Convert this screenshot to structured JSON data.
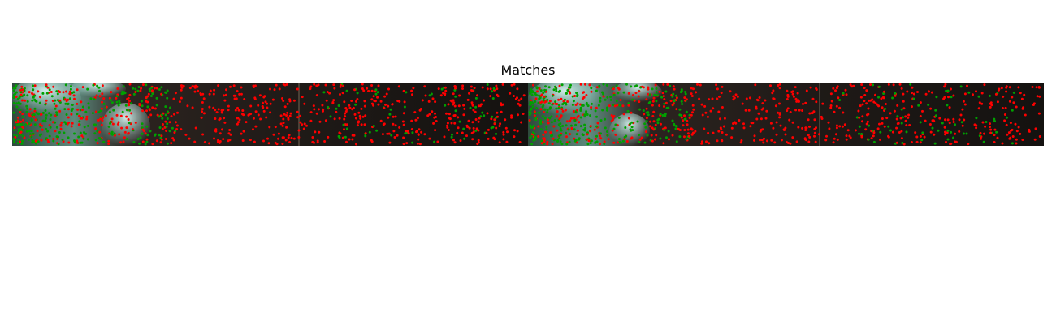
{
  "figure": {
    "title": "Matches"
  },
  "colors": {
    "inlier": "#00a000",
    "outlier": "#ff0000",
    "foliage_light": "#9fd8d0",
    "background_dark": "#1a1714"
  },
  "panels": [
    "left-image",
    "right-image"
  ]
}
